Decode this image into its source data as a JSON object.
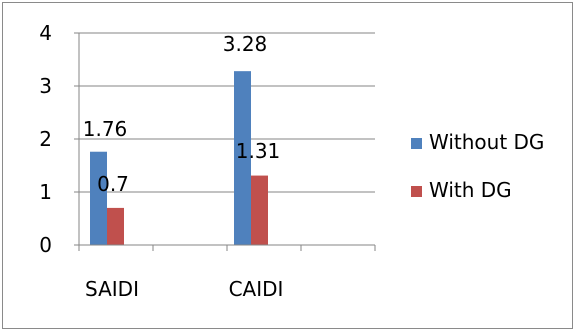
{
  "chart_data": {
    "type": "bar",
    "title": "",
    "xlabel": "",
    "ylabel": "",
    "categories": [
      "SAIDI",
      "CAIDI"
    ],
    "series": [
      {
        "name": "Without DG",
        "values": [
          1.76,
          3.28
        ],
        "color": "#4F81BD"
      },
      {
        "name": "With DG",
        "values": [
          0.7,
          1.31
        ],
        "color": "#C0504D"
      }
    ],
    "data_labels": [
      [
        "1.76",
        "3.28"
      ],
      [
        "0.7",
        "1.31"
      ]
    ],
    "ylim": [
      0,
      4
    ],
    "yticks": [
      "0",
      "1",
      "2",
      "3",
      "4"
    ],
    "grid": true,
    "legend_position": "right"
  }
}
